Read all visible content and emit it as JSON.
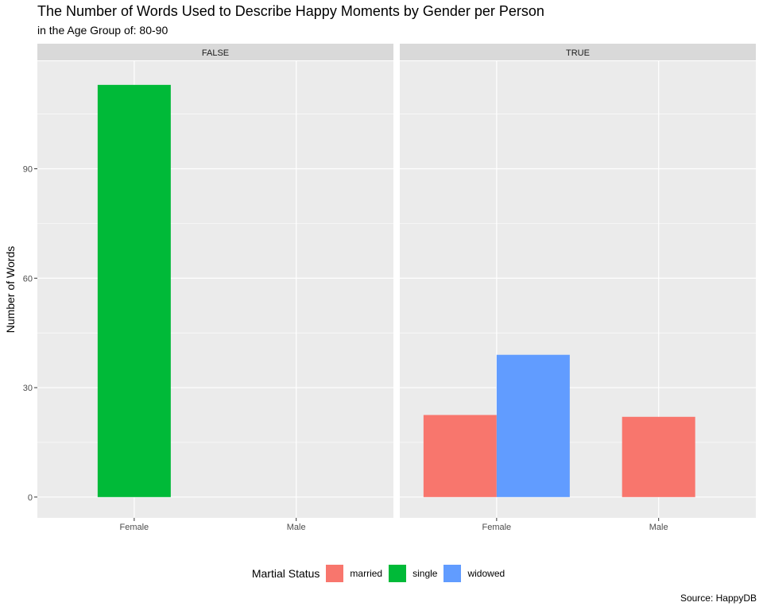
{
  "title": "The Number of Words Used to Describe Happy Moments by Gender per Person",
  "subtitle": "in the Age Group of: 80-90",
  "caption": "Source: HappyDB",
  "colors": {
    "married": "#F8766D",
    "single": "#00BA38",
    "widowed": "#619CFF",
    "panel_bg": "#EBEBEB",
    "strip_bg": "#D9D9D9"
  },
  "chart_data": {
    "type": "bar",
    "facet_strips": [
      "FALSE",
      "TRUE"
    ],
    "categories": [
      "Female",
      "Male"
    ],
    "ylabel": "Number of Words",
    "xlabel": "",
    "yticks": [
      0,
      30,
      60,
      90
    ],
    "ylim": [
      -5.7,
      119.5
    ],
    "grid": true,
    "legend": {
      "title": "Martial Status",
      "position": "bottom",
      "entries": [
        "married",
        "single",
        "widowed"
      ]
    },
    "facets": [
      {
        "strip": "FALSE",
        "series": [
          {
            "name": "single",
            "category": "Female",
            "value": 113
          }
        ]
      },
      {
        "strip": "TRUE",
        "series": [
          {
            "name": "married",
            "category": "Female",
            "value": 22.5
          },
          {
            "name": "widowed",
            "category": "Female",
            "value": 39
          },
          {
            "name": "married",
            "category": "Male",
            "value": 22
          }
        ]
      }
    ]
  }
}
